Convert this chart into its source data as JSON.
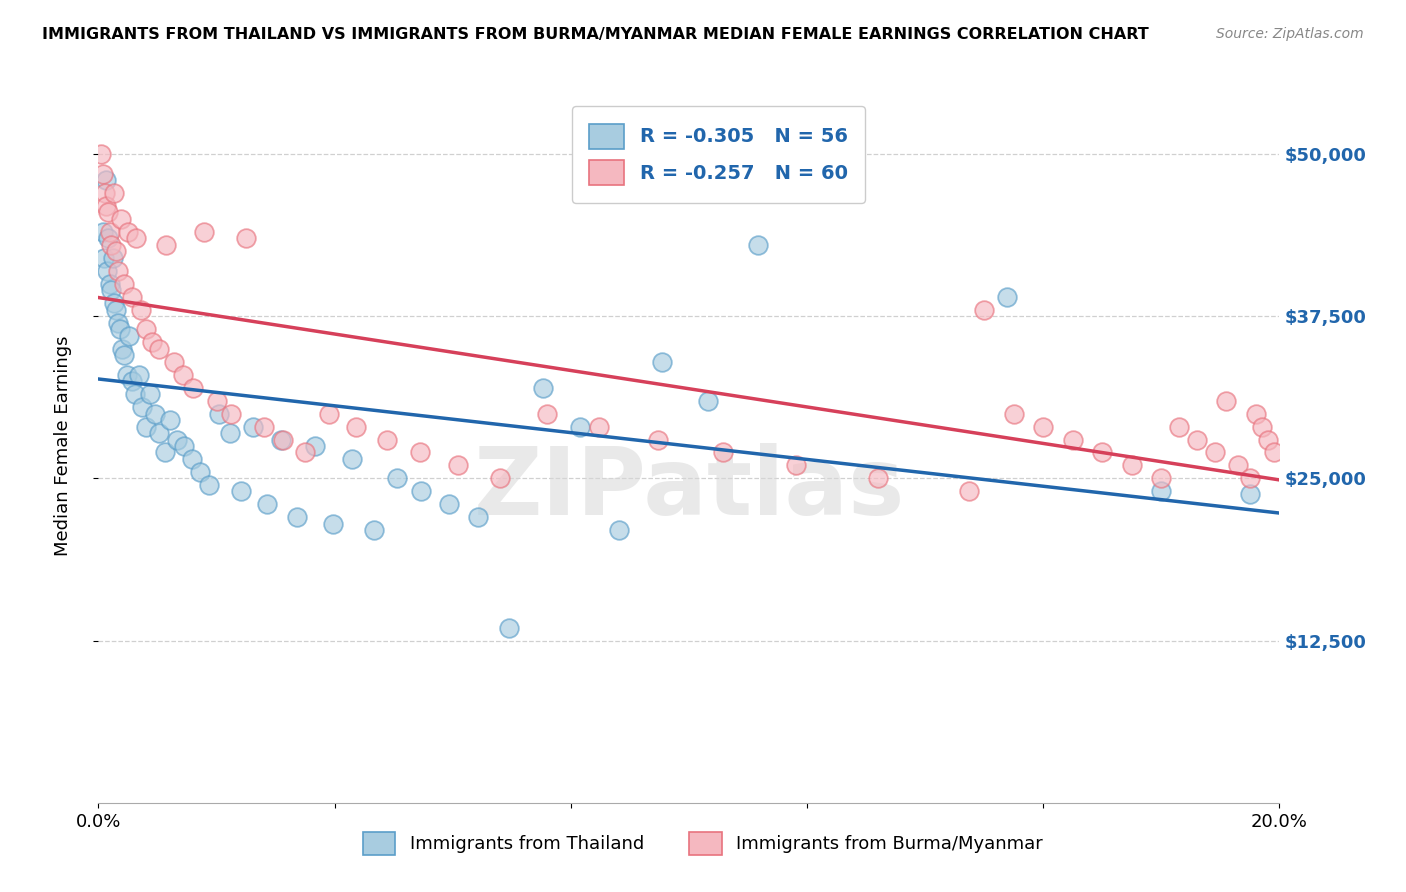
{
  "title": "IMMIGRANTS FROM THAILAND VS IMMIGRANTS FROM BURMA/MYANMAR MEDIAN FEMALE EARNINGS CORRELATION CHART",
  "source": "Source: ZipAtlas.com",
  "ylabel": "Median Female Earnings",
  "x_min": 0.0,
  "x_max": 0.2,
  "y_min": 0,
  "y_max": 55000,
  "y_ticks": [
    12500,
    25000,
    37500,
    50000
  ],
  "y_tick_labels": [
    "$12,500",
    "$25,000",
    "$37,500",
    "$50,000"
  ],
  "watermark": "ZIPatlas",
  "legend_r_blue": "-0.305",
  "legend_n_blue": "56",
  "legend_r_pink": "-0.257",
  "legend_n_pink": "60",
  "legend_label_blue": "Immigrants from Thailand",
  "legend_label_pink": "Immigrants from Burma/Myanmar",
  "blue_color": "#a8cce0",
  "pink_color": "#f5b8c0",
  "blue_edge_color": "#5b9ec9",
  "pink_edge_color": "#e8737e",
  "blue_line_color": "#2166ac",
  "pink_line_color": "#d6405a",
  "thailand_x": [
    0.0008,
    0.001,
    0.0012,
    0.0015,
    0.0017,
    0.0019,
    0.0021,
    0.0024,
    0.0026,
    0.003,
    0.0033,
    0.0036,
    0.004,
    0.0044,
    0.0048,
    0.0052,
    0.0057,
    0.0062,
    0.0068,
    0.0074,
    0.008,
    0.0087,
    0.0095,
    0.0103,
    0.0112,
    0.0122,
    0.0133,
    0.0145,
    0.0158,
    0.0172,
    0.0187,
    0.0204,
    0.0222,
    0.0241,
    0.0262,
    0.0285,
    0.031,
    0.0337,
    0.0366,
    0.0397,
    0.043,
    0.0466,
    0.0505,
    0.0547,
    0.0593,
    0.0642,
    0.0695,
    0.0753,
    0.0815,
    0.0882,
    0.0955,
    0.1033,
    0.1117,
    0.1538,
    0.18,
    0.195
  ],
  "thailand_y": [
    44000,
    42000,
    48000,
    41000,
    43500,
    40000,
    39500,
    42000,
    38500,
    38000,
    37000,
    36500,
    35000,
    34500,
    33000,
    36000,
    32500,
    31500,
    33000,
    30500,
    29000,
    31500,
    30000,
    28500,
    27000,
    29500,
    28000,
    27500,
    26500,
    25500,
    24500,
    30000,
    28500,
    24000,
    29000,
    23000,
    28000,
    22000,
    27500,
    21500,
    26500,
    21000,
    25000,
    24000,
    23000,
    22000,
    13500,
    32000,
    29000,
    21000,
    34000,
    31000,
    43000,
    39000,
    24000,
    23800
  ],
  "burma_x": [
    0.0005,
    0.0008,
    0.0011,
    0.0013,
    0.0016,
    0.0019,
    0.0022,
    0.0026,
    0.003,
    0.0034,
    0.0039,
    0.0044,
    0.005,
    0.0057,
    0.0064,
    0.0072,
    0.0081,
    0.0091,
    0.0102,
    0.0114,
    0.0128,
    0.0143,
    0.016,
    0.0179,
    0.02,
    0.0224,
    0.025,
    0.028,
    0.0313,
    0.035,
    0.0391,
    0.0437,
    0.0488,
    0.0545,
    0.0609,
    0.068,
    0.0759,
    0.0848,
    0.0947,
    0.1058,
    0.1182,
    0.132,
    0.1474,
    0.15,
    0.155,
    0.16,
    0.165,
    0.17,
    0.175,
    0.18,
    0.183,
    0.186,
    0.189,
    0.191,
    0.193,
    0.195,
    0.196,
    0.197,
    0.198,
    0.199
  ],
  "burma_y": [
    50000,
    48500,
    47000,
    46000,
    45500,
    44000,
    43000,
    47000,
    42500,
    41000,
    45000,
    40000,
    44000,
    39000,
    43500,
    38000,
    36500,
    35500,
    35000,
    43000,
    34000,
    33000,
    32000,
    44000,
    31000,
    30000,
    43500,
    29000,
    28000,
    27000,
    30000,
    29000,
    28000,
    27000,
    26000,
    25000,
    30000,
    29000,
    28000,
    27000,
    26000,
    25000,
    24000,
    38000,
    30000,
    29000,
    28000,
    27000,
    26000,
    25000,
    29000,
    28000,
    27000,
    31000,
    26000,
    25000,
    30000,
    29000,
    28000,
    27000
  ]
}
